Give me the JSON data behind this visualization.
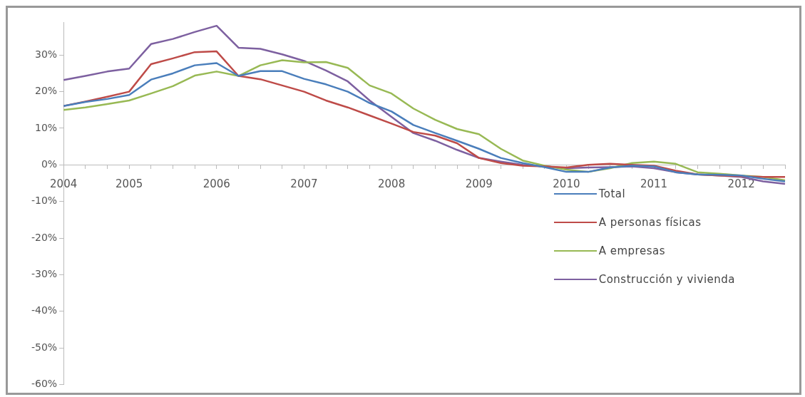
{
  "chart_data": {
    "type": "line",
    "categories": [
      "2004",
      null,
      null,
      "2005",
      null,
      null,
      null,
      "2006",
      null,
      null,
      null,
      "2007",
      null,
      null,
      null,
      "2008",
      null,
      null,
      null,
      "2009",
      null,
      null,
      null,
      "2010",
      null,
      null,
      null,
      "2011",
      null,
      null,
      null,
      "2012",
      null,
      null
    ],
    "series": [
      {
        "name": "Total",
        "color": "#4a7ebb",
        "values": [
          16.1,
          17.2,
          18,
          19.1,
          23.3,
          25,
          27.2,
          27.8,
          24.3,
          25.6,
          25.6,
          23.5,
          22,
          20,
          16.9,
          14.6,
          10.9,
          8.7,
          6.6,
          4.4,
          1.9,
          0.5,
          -0.6,
          -1.9,
          -1.9,
          -0.7,
          -0.2,
          -0.4,
          -2,
          -2.6,
          -2.7,
          -2.9,
          -3.8,
          -4.5
        ]
      },
      {
        "name": "A personas físicas",
        "color": "#be4b48",
        "values": [
          16.1,
          17.3,
          18.6,
          20,
          27.5,
          29.1,
          30.8,
          31,
          24.3,
          23.4,
          21.7,
          20,
          17.6,
          15.7,
          13.5,
          11.3,
          9,
          8,
          5.9,
          1.9,
          0.5,
          -0.2,
          -0.4,
          -0.7,
          0,
          0.3,
          0,
          -0.2,
          -1.6,
          -2.6,
          -2.9,
          -3.1,
          -3.3,
          -3.3
        ]
      },
      {
        "name": "A empresas",
        "color": "#98b954",
        "values": [
          15,
          15.7,
          16.6,
          17.6,
          19.5,
          21.5,
          24.4,
          25.5,
          24.3,
          27.2,
          28.6,
          28,
          28.1,
          26.5,
          21.7,
          19.5,
          15.4,
          12.3,
          9.8,
          8.4,
          4.4,
          1.2,
          -0.2,
          -1.3,
          -1.9,
          -0.9,
          0.5,
          0.9,
          0.3,
          -2,
          -2.4,
          -2.9,
          -3.3,
          -4.2
        ]
      },
      {
        "name": "Construcción y vivienda",
        "color": "#7d60a0",
        "values": [
          23.2,
          24.3,
          25.5,
          26.3,
          33,
          34.4,
          36.3,
          38,
          32,
          31.7,
          30.2,
          28.4,
          25.8,
          22.8,
          17.6,
          13.1,
          8.7,
          6.6,
          4.1,
          1.9,
          0.9,
          0,
          -0.4,
          -0.9,
          -0.7,
          -0.6,
          -0.4,
          -0.9,
          -2,
          -2.6,
          -2.9,
          -3.3,
          -4.5,
          -5.2
        ]
      }
    ],
    "ylim": [
      -60,
      39
    ],
    "yticks": [
      {
        "value": -60,
        "label": "-60%"
      },
      {
        "value": -50,
        "label": "-50%"
      },
      {
        "value": -40,
        "label": "-40%"
      },
      {
        "value": -30,
        "label": "-30%"
      },
      {
        "value": -20,
        "label": "-20%"
      },
      {
        "value": -10,
        "label": "-10%"
      },
      {
        "value": 0,
        "label": "0%"
      },
      {
        "value": 10,
        "label": "10%"
      },
      {
        "value": 20,
        "label": "20%"
      },
      {
        "value": 30,
        "label": "30%"
      }
    ],
    "grid": false,
    "legend": "bottom right",
    "marker": "none",
    "line_style": "solid"
  }
}
